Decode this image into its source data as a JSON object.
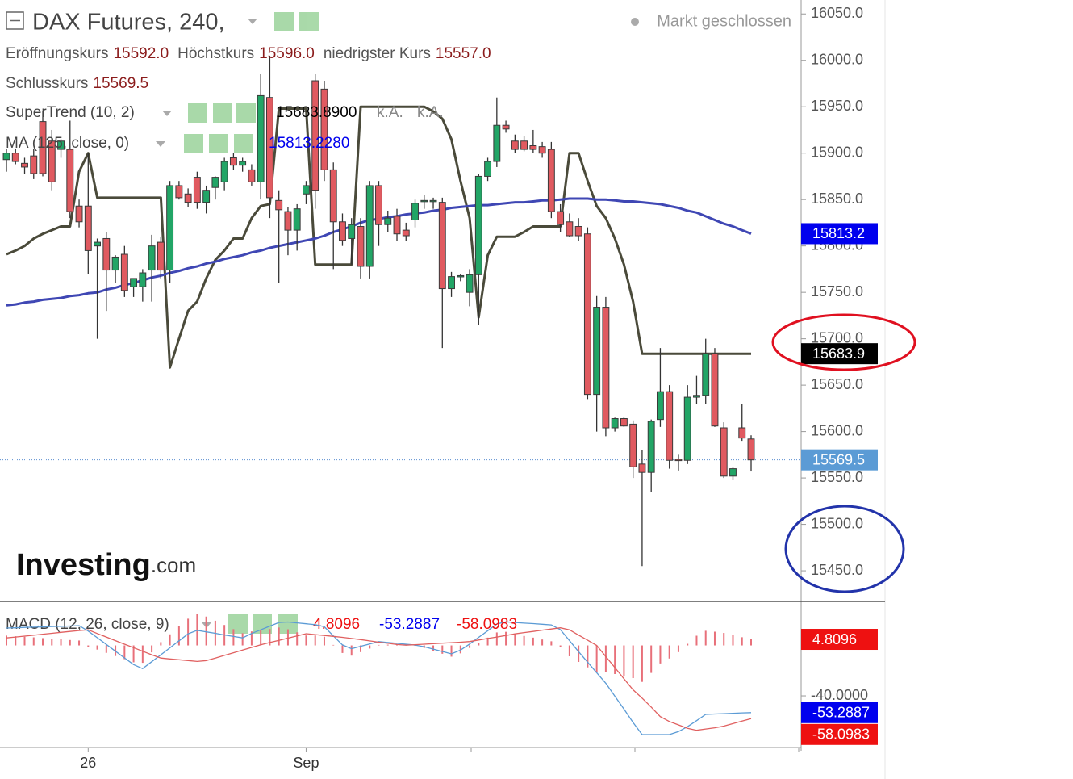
{
  "chart_data": [
    {
      "type": "candlestick",
      "title": "DAX Futures, 240,",
      "status": "Markt geschlossen",
      "ohlc_legend": [
        {
          "label": "Eröffnungskurs",
          "value": "15592.0"
        },
        {
          "label": "Höchstkurs",
          "value": "15596.0"
        },
        {
          "label": "niedrigster Kurs",
          "value": "15557.0"
        },
        {
          "label": "Schlusskurs",
          "value": "15569.5"
        }
      ],
      "logo": {
        "main": "Investing",
        "suffix": ".com"
      },
      "categories": [
        null,
        null,
        null,
        null,
        null,
        null,
        null,
        null,
        null,
        "26",
        null,
        null,
        null,
        null,
        null,
        null,
        null,
        null,
        null,
        null,
        null,
        null,
        null,
        null,
        null,
        null,
        null,
        null,
        null,
        null,
        null,
        null,
        null,
        "Sep",
        null,
        null,
        null,
        null,
        null,
        null,
        null,
        null,
        null,
        null,
        null,
        null,
        null,
        null,
        null,
        null,
        null,
        null,
        null,
        null,
        null,
        null,
        null,
        null,
        null,
        null,
        null,
        null,
        null,
        null,
        null,
        null,
        null,
        null,
        null,
        null,
        null,
        null,
        null,
        null,
        null,
        null,
        null,
        null,
        null,
        null,
        null,
        null,
        null
      ],
      "open": [
        15893,
        15900,
        15889,
        15897,
        15934,
        15913,
        15904,
        15904,
        15843,
        15843,
        15800,
        15808,
        15774,
        15791,
        15756,
        15756,
        15774,
        15804,
        15774,
        15865,
        15856,
        15874,
        15847,
        15863,
        15869,
        15895,
        15887,
        15882,
        15869,
        15960,
        15849,
        15837,
        15817,
        15856,
        15978,
        15969,
        15882,
        15826,
        15808,
        15821,
        15778,
        15865,
        15823,
        15832,
        15817,
        15828,
        15848,
        15848,
        15847,
        15754,
        15767,
        15750,
        15769,
        15875,
        15891,
        15930,
        15913,
        15913,
        15908,
        15907,
        15904,
        15837,
        15826,
        15821,
        15813,
        15640,
        15734,
        15604,
        15614,
        15608,
        15565,
        15556,
        15613,
        15643,
        15570,
        15569,
        15637,
        15639,
        15684,
        15604,
        15552,
        15604,
        15592
      ],
      "high": [
        15905,
        15905,
        15895,
        15905,
        15945,
        15925,
        15915,
        15935,
        15850,
        15900,
        15808,
        15815,
        15790,
        15800,
        15765,
        15775,
        15812,
        15810,
        15870,
        15870,
        15862,
        15880,
        15865,
        15875,
        15895,
        15900,
        15895,
        15888,
        15985,
        16005,
        15860,
        15842,
        15845,
        15870,
        15985,
        15978,
        15890,
        15835,
        15830,
        15830,
        15870,
        15870,
        15838,
        15840,
        15825,
        15850,
        15855,
        15852,
        15852,
        15772,
        15770,
        15775,
        15878,
        15895,
        15960,
        15935,
        15920,
        15918,
        15925,
        15912,
        15912,
        15845,
        15835,
        15830,
        15820,
        15746,
        15745,
        15615,
        15616,
        15612,
        15580,
        15613,
        15690,
        15650,
        15575,
        15650,
        15660,
        15700,
        15690,
        15610,
        15562,
        15630,
        15596
      ],
      "low": [
        15880,
        15888,
        15878,
        15872,
        15875,
        15860,
        15895,
        15830,
        15820,
        15770,
        15700,
        15730,
        15760,
        15745,
        15745,
        15740,
        15740,
        15765,
        15760,
        15850,
        15842,
        15840,
        15835,
        15850,
        15860,
        15882,
        15880,
        15865,
        15850,
        15830,
        15760,
        15790,
        15795,
        15845,
        15840,
        15870,
        15775,
        15800,
        15780,
        15765,
        15765,
        15800,
        15815,
        15805,
        15805,
        15820,
        15840,
        15840,
        15690,
        15745,
        15762,
        15735,
        15715,
        15870,
        15885,
        15922,
        15900,
        15902,
        15900,
        15895,
        15830,
        15815,
        15810,
        15805,
        15635,
        15600,
        15595,
        15600,
        15605,
        15550,
        15455,
        15535,
        15605,
        15560,
        15558,
        15565,
        15630,
        15630,
        15605,
        15550,
        15548,
        15590,
        15557
      ],
      "close": [
        15900,
        15891,
        15885,
        15878,
        15878,
        15869,
        15913,
        15837,
        15826,
        15795,
        15804,
        15774,
        15788,
        15752,
        15765,
        15771,
        15800,
        15774,
        15865,
        15852,
        15847,
        15847,
        15860,
        15874,
        15891,
        15887,
        15891,
        15869,
        15962,
        15852,
        15839,
        15817,
        15840,
        15865,
        15860,
        15882,
        15826,
        15806,
        15823,
        15778,
        15865,
        15823,
        15830,
        15813,
        15811,
        15846,
        15849,
        15849,
        15754,
        15767,
        15768,
        15769,
        15875,
        15891,
        15930,
        15926,
        15904,
        15904,
        15904,
        15900,
        15837,
        15823,
        15811,
        15811,
        15640,
        15734,
        15604,
        15614,
        15606,
        15562,
        15556,
        15611,
        15643,
        15569,
        15569,
        15637,
        15639,
        15684,
        15606,
        15552,
        15560,
        15593,
        15569.5
      ],
      "up_color": "#22a566",
      "down_color": "#e05a60",
      "last_label": "15569.5",
      "tag_color": "#5b9bd5",
      "overlays": [
        {
          "name": "SuperTrend (10, 2)",
          "color": "#4a4a3a",
          "tag_color": "#000000",
          "legend_value": "15683.8900",
          "last_label": "15683.9",
          "extra": [
            "k.A.",
            "k.A."
          ],
          "values": [
            15791,
            15795,
            15800,
            15808,
            15813,
            15817,
            15821,
            15821,
            15880,
            15900,
            15852,
            15852,
            15852,
            15852,
            15852,
            15852,
            15852,
            15852,
            15669,
            15700,
            15730,
            15740,
            15765,
            15785,
            15795,
            15808,
            15808,
            15830,
            15843,
            15845,
            15948,
            15948,
            15948,
            15948,
            15780,
            15780,
            15780,
            15780,
            15780,
            15950,
            15950,
            15950,
            15950,
            15950,
            15950,
            15950,
            15950,
            15945,
            15937,
            15915,
            15870,
            15830,
            15723,
            15790,
            15810,
            15810,
            15810,
            15815,
            15821,
            15821,
            15821,
            15821,
            15900,
            15900,
            15870,
            15843,
            15830,
            15808,
            15780,
            15740,
            15683.89,
            15683.89,
            15683.89,
            15683.89,
            15683.89,
            15683.89,
            15683.89,
            15683.89,
            15683.89,
            15683.89,
            15683.89,
            15683.89,
            15683.89
          ]
        },
        {
          "name": "MA (125, close, 0)",
          "color": "#3f47b4",
          "tag_color": "#0000ee",
          "legend_value": "15813.2280",
          "last_label": "15813.2",
          "values": [
            15736,
            15737,
            15739,
            15740,
            15742,
            15743,
            15744,
            15746,
            15747,
            15749,
            15750,
            15753,
            15755,
            15758,
            15760,
            15763,
            15766,
            15768,
            15771,
            15773,
            15776,
            15778,
            15781,
            15783,
            15786,
            15788,
            15790,
            15793,
            15795,
            15798,
            15800,
            15802,
            15804,
            15806,
            15808,
            15811,
            15815,
            15818,
            15821,
            15825,
            15828,
            15829,
            15831,
            15832,
            15834,
            15835,
            15836,
            15838,
            15839,
            15841,
            15842,
            15843,
            15844,
            15844,
            15845,
            15846,
            15847,
            15847,
            15848,
            15849,
            15849,
            15850,
            15851,
            15851,
            15851,
            15850,
            15850,
            15849,
            15848,
            15848,
            15847,
            15846,
            15845,
            15843,
            15841,
            15838,
            15836,
            15832,
            15828,
            15824,
            15821,
            15817,
            15813.228
          ]
        }
      ],
      "ylim": [
        15417,
        16065
      ],
      "yticks": [
        {
          "value": 16050,
          "label": "16050.0"
        },
        {
          "value": 16000,
          "label": "16000.0"
        },
        {
          "value": 15950,
          "label": "15950.0"
        },
        {
          "value": 15900,
          "label": "15900.0"
        },
        {
          "value": 15850,
          "label": "15850.0"
        },
        {
          "value": 15800,
          "label": "15800.0"
        },
        {
          "value": 15750,
          "label": "15750.0"
        },
        {
          "value": 15700,
          "label": "15700.0"
        },
        {
          "value": 15650,
          "label": "15650.0"
        },
        {
          "value": 15600,
          "label": "15600.0"
        },
        {
          "value": 15550,
          "label": "15550.0"
        },
        {
          "value": 15500,
          "label": "15500.0"
        },
        {
          "value": 15450,
          "label": "15450.0"
        }
      ]
    },
    {
      "type": "macd",
      "title": "MACD (12, 26, close, 9)",
      "series": [
        {
          "style": "histogram",
          "color": "#e8707a",
          "tag_color": "#ee1111",
          "legend_value": "4.8096",
          "last_label": "4.8096",
          "values": [
            7.8,
            7.3,
            6.9,
            6.4,
            5.8,
            5.4,
            4.8,
            4.3,
            3.9,
            -1.0,
            -3.3,
            -5.9,
            -8.4,
            -10.9,
            -13.4,
            -13.8,
            -5.5,
            2.6,
            8.8,
            15.1,
            21.2,
            24.7,
            22.9,
            19.6,
            16.2,
            12.9,
            9.7,
            11.1,
            11.9,
            13,
            14.2,
            12.8,
            10.4,
            7.9,
            7.9,
            6.9,
            0.4,
            -6,
            -8.1,
            -5.3,
            -2.5,
            0.4,
            0.6,
            1,
            0.8,
            -0.3,
            -2,
            -4.3,
            -6.6,
            -8.9,
            -6.3,
            -2,
            2.1,
            6.2,
            10.3,
            10.8,
            9,
            7.5,
            6.2,
            4.7,
            3.3,
            -1.5,
            -8.6,
            -13.1,
            -17.4,
            -21.6,
            -21.2,
            -22.7,
            -24.1,
            -25.9,
            -28.9,
            -21.8,
            -14.3,
            -10.4,
            -5.3,
            1.3,
            7.7,
            11.6,
            10.9,
            9.9,
            8.2,
            6.5,
            4.8096
          ]
        },
        {
          "style": "line",
          "color": "#5b9bd5",
          "tag_color": "#0000ee",
          "legend_value": "-53.2887",
          "last_label": "-53.2887",
          "values": [
            13.8,
            14,
            14.3,
            14.5,
            14.7,
            15,
            15.2,
            15.4,
            15.7,
            11.4,
            6.1,
            0.8,
            -4.6,
            -9.9,
            -15.2,
            -18.4,
            -12.9,
            -7.4,
            -1.9,
            3.7,
            9.2,
            12,
            10.8,
            9.6,
            8.3,
            7.1,
            6,
            9.5,
            12.4,
            15.3,
            18.2,
            18.6,
            17.9,
            17.2,
            16.5,
            14.8,
            7.6,
            0.4,
            -2.6,
            -0.7,
            1.1,
            3,
            2.3,
            1.7,
            1,
            0.3,
            -1,
            -2.9,
            -4.8,
            -6.7,
            -3.7,
            1.1,
            6.4,
            11.7,
            17,
            18.7,
            18.2,
            17.7,
            17.3,
            16.8,
            16.3,
            12.5,
            3.8,
            -4.9,
            -13.3,
            -21.6,
            -30,
            -40.3,
            -50.5,
            -61.1,
            -70.7,
            -70.7,
            -70.7,
            -70.7,
            -68.3,
            -64.4,
            -59.6,
            -54.7,
            -54.4,
            -54.1,
            -53.8,
            -53.5,
            -53.2887
          ]
        },
        {
          "style": "line",
          "color": "#e06060",
          "tag_color": "#ee1111",
          "legend_value": "-58.0983",
          "last_label": "-58.0983",
          "values": [
            6,
            6.7,
            7.4,
            8.1,
            8.9,
            9.6,
            10.4,
            11.1,
            11.8,
            12.4,
            9.4,
            6.7,
            3.8,
            1,
            -1.8,
            -4.6,
            -7.4,
            -10,
            -10.7,
            -11.4,
            -12,
            -12.7,
            -12.1,
            -10,
            -7.9,
            -5.8,
            -3.7,
            -1.6,
            0.5,
            2.3,
            4,
            5.8,
            7.5,
            9.3,
            8.6,
            7.9,
            7.2,
            6.4,
            5.5,
            4.6,
            3.6,
            2.6,
            1.7,
            0.7,
            0.2,
            0.6,
            1,
            1.4,
            1.8,
            2.2,
            2.6,
            3.1,
            4.3,
            5.5,
            6.7,
            7.9,
            9.2,
            10.2,
            11.1,
            12.1,
            13,
            14,
            12.4,
            8.2,
            4.1,
            0,
            -8.8,
            -17.6,
            -26.4,
            -35.2,
            -41.8,
            -48.9,
            -56.4,
            -60.3,
            -63,
            -65.7,
            -67.3,
            -66.3,
            -65.3,
            -64,
            -62,
            -60,
            -58.0983
          ]
        }
      ],
      "ylim": [
        -80.3,
        34.9
      ],
      "yticks": [
        {
          "value": -40,
          "label": "-40.0000"
        }
      ]
    }
  ]
}
